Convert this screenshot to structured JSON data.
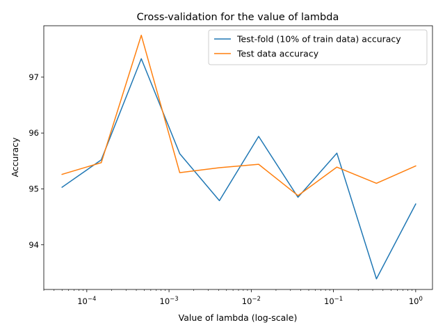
{
  "chart_data": {
    "type": "line",
    "title": "Cross-validation for the value of lambda",
    "xlabel": "Value of lambda (log-scale)",
    "ylabel": "Accuracy",
    "xscale": "log",
    "xlim": [
      3e-05,
      1.6
    ],
    "ylim": [
      93.2,
      97.92
    ],
    "x": [
      5e-05,
      0.00015,
      0.00046,
      0.00135,
      0.0041,
      0.0123,
      0.037,
      0.11,
      0.333,
      1.0
    ],
    "x_ticks": [
      {
        "value": 0.0001,
        "base": "10",
        "exp": "−4"
      },
      {
        "value": 0.001,
        "base": "10",
        "exp": "−3"
      },
      {
        "value": 0.01,
        "base": "10",
        "exp": "−2"
      },
      {
        "value": 0.1,
        "base": "10",
        "exp": "−1"
      },
      {
        "value": 1.0,
        "base": "10",
        "exp": "0"
      }
    ],
    "y_ticks": [
      {
        "value": 94,
        "label": "94"
      },
      {
        "value": 95,
        "label": "95"
      },
      {
        "value": 96,
        "label": "96"
      },
      {
        "value": 97,
        "label": "97"
      }
    ],
    "series": [
      {
        "name": "Test-fold (10% of train data) accuracy",
        "color": "#1f77b4",
        "values": [
          95.03,
          95.52,
          97.33,
          95.63,
          94.79,
          95.94,
          94.85,
          95.64,
          93.39,
          94.73
        ]
      },
      {
        "name": "Test data accuracy",
        "color": "#ff7f0e",
        "values": [
          95.26,
          95.47,
          97.75,
          95.29,
          95.38,
          95.44,
          94.88,
          95.39,
          95.1,
          95.41
        ]
      }
    ],
    "legend": "top-right",
    "grid": false
  }
}
